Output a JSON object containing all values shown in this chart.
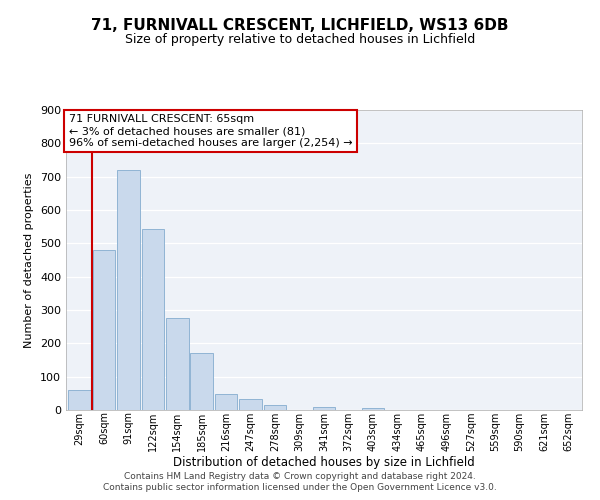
{
  "title": "71, FURNIVALL CRESCENT, LICHFIELD, WS13 6DB",
  "subtitle": "Size of property relative to detached houses in Lichfield",
  "xlabel": "Distribution of detached houses by size in Lichfield",
  "ylabel": "Number of detached properties",
  "bar_labels": [
    "29sqm",
    "60sqm",
    "91sqm",
    "122sqm",
    "154sqm",
    "185sqm",
    "216sqm",
    "247sqm",
    "278sqm",
    "309sqm",
    "341sqm",
    "372sqm",
    "403sqm",
    "434sqm",
    "465sqm",
    "496sqm",
    "527sqm",
    "559sqm",
    "590sqm",
    "621sqm",
    "652sqm"
  ],
  "bar_values": [
    60,
    480,
    720,
    543,
    275,
    172,
    48,
    33,
    15,
    0,
    8,
    0,
    5,
    0,
    0,
    0,
    0,
    0,
    0,
    0,
    0
  ],
  "bar_color": "#c9d9ec",
  "bar_edge_color": "#90b4d4",
  "ylim": [
    0,
    900
  ],
  "yticks": [
    0,
    100,
    200,
    300,
    400,
    500,
    600,
    700,
    800,
    900
  ],
  "vline_x": 1.0,
  "vline_color": "#cc0000",
  "annotation_title": "71 FURNIVALL CRESCENT: 65sqm",
  "annotation_line1": "← 3% of detached houses are smaller (81)",
  "annotation_line2": "96% of semi-detached houses are larger (2,254) →",
  "annotation_box_color": "#ffffff",
  "annotation_box_edge": "#cc0000",
  "footer1": "Contains HM Land Registry data © Crown copyright and database right 2024.",
  "footer2": "Contains public sector information licensed under the Open Government Licence v3.0.",
  "background_color": "#ffffff",
  "plot_bg_color": "#eef2f8",
  "grid_color": "#ffffff",
  "title_fontsize": 11,
  "subtitle_fontsize": 9
}
